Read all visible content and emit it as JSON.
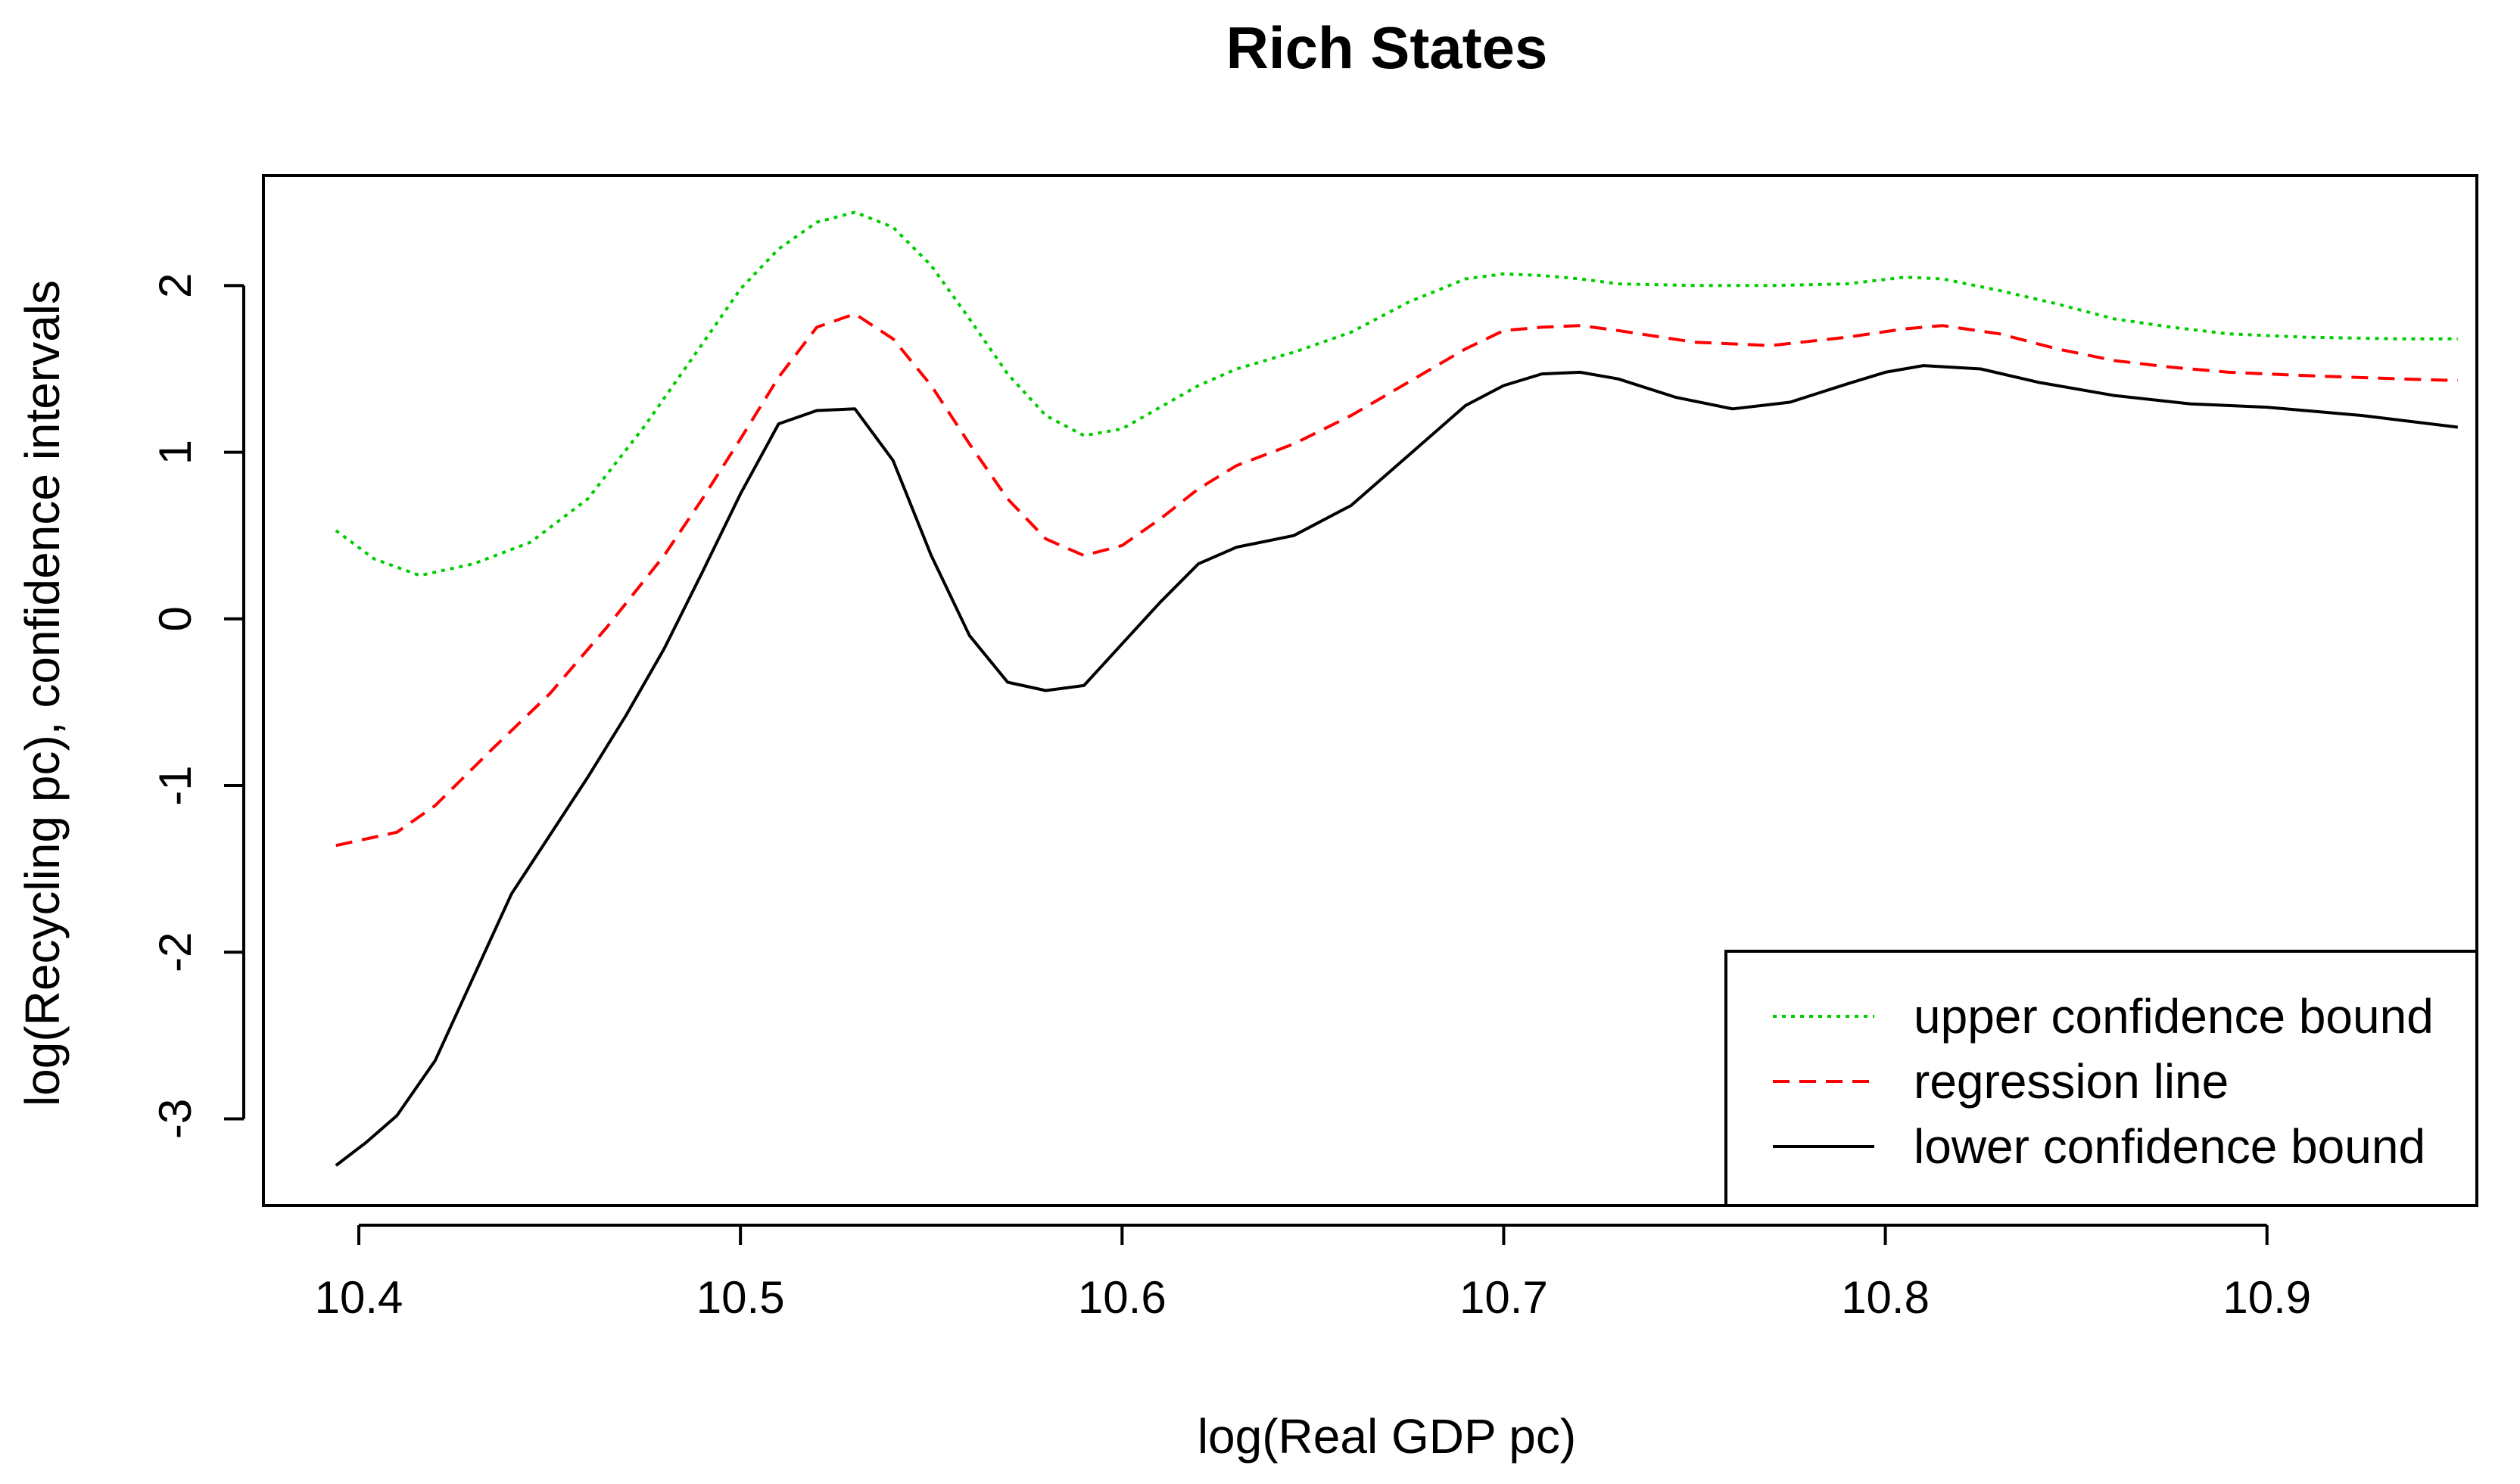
{
  "chart_data": {
    "type": "line",
    "title": "Rich States",
    "xlabel": "log(Real GDP pc)",
    "ylabel": "log(Recycling pc), confidence intervals",
    "xlim": [
      10.375,
      10.955
    ],
    "ylim": [
      -3.52,
      2.66
    ],
    "xticks": [
      10.4,
      10.5,
      10.6,
      10.7,
      10.8,
      10.9
    ],
    "xtick_labels": [
      "10.4",
      "10.5",
      "10.6",
      "10.7",
      "10.8",
      "10.9"
    ],
    "yticks": [
      -3,
      -2,
      -1,
      0,
      1,
      2
    ],
    "ytick_labels": [
      "-3",
      "-2",
      "-1",
      "0",
      "1",
      "2"
    ],
    "legend_position": "bottom-right",
    "grid": false,
    "series": [
      {
        "name": "upper confidence bound",
        "color": "#00cc00",
        "style": "dotted",
        "x": [
          10.394,
          10.404,
          10.416,
          10.43,
          10.445,
          10.46,
          10.475,
          10.49,
          10.5,
          10.51,
          10.52,
          10.53,
          10.54,
          10.55,
          10.56,
          10.57,
          10.58,
          10.59,
          10.6,
          10.61,
          10.62,
          10.63,
          10.645,
          10.66,
          10.675,
          10.69,
          10.7,
          10.71,
          10.72,
          10.73,
          10.75,
          10.77,
          10.79,
          10.805,
          10.815,
          10.83,
          10.845,
          10.86,
          10.875,
          10.89,
          10.91,
          10.935,
          10.95
        ],
        "y": [
          0.53,
          0.36,
          0.26,
          0.33,
          0.46,
          0.72,
          1.16,
          1.65,
          1.98,
          2.22,
          2.38,
          2.44,
          2.35,
          2.12,
          1.8,
          1.47,
          1.22,
          1.1,
          1.14,
          1.27,
          1.4,
          1.5,
          1.6,
          1.72,
          1.9,
          2.04,
          2.07,
          2.06,
          2.04,
          2.01,
          2.0,
          2.0,
          2.01,
          2.05,
          2.04,
          1.97,
          1.89,
          1.8,
          1.75,
          1.71,
          1.69,
          1.68,
          1.68
        ]
      },
      {
        "name": "regression line",
        "color": "#ff0000",
        "style": "dashed",
        "x": [
          10.394,
          10.41,
          10.42,
          10.435,
          10.45,
          10.465,
          10.48,
          10.49,
          10.5,
          10.51,
          10.52,
          10.53,
          10.54,
          10.55,
          10.56,
          10.57,
          10.58,
          10.59,
          10.6,
          10.61,
          10.62,
          10.63,
          10.645,
          10.66,
          10.675,
          10.69,
          10.7,
          10.71,
          10.72,
          10.73,
          10.75,
          10.77,
          10.79,
          10.805,
          10.815,
          10.83,
          10.845,
          10.86,
          10.875,
          10.89,
          10.91,
          10.935,
          10.95
        ],
        "y": [
          -1.36,
          -1.28,
          -1.12,
          -0.78,
          -0.45,
          -0.05,
          0.38,
          0.72,
          1.08,
          1.45,
          1.75,
          1.83,
          1.68,
          1.4,
          1.05,
          0.72,
          0.48,
          0.38,
          0.44,
          0.6,
          0.78,
          0.92,
          1.05,
          1.22,
          1.42,
          1.62,
          1.73,
          1.75,
          1.76,
          1.73,
          1.66,
          1.64,
          1.69,
          1.74,
          1.76,
          1.71,
          1.62,
          1.55,
          1.51,
          1.48,
          1.46,
          1.44,
          1.43
        ]
      },
      {
        "name": "lower confidence bound",
        "color": "#000000",
        "style": "solid",
        "x": [
          10.394,
          10.402,
          10.41,
          10.42,
          10.43,
          10.44,
          10.45,
          10.46,
          10.47,
          10.48,
          10.49,
          10.5,
          10.51,
          10.52,
          10.53,
          10.54,
          10.55,
          10.56,
          10.57,
          10.58,
          10.59,
          10.6,
          10.61,
          10.62,
          10.63,
          10.645,
          10.66,
          10.675,
          10.69,
          10.7,
          10.71,
          10.72,
          10.73,
          10.745,
          10.76,
          10.775,
          10.79,
          10.8,
          10.81,
          10.825,
          10.84,
          10.86,
          10.88,
          10.9,
          10.925,
          10.95
        ],
        "y": [
          -3.28,
          -3.14,
          -2.98,
          -2.65,
          -2.15,
          -1.65,
          -1.3,
          -0.95,
          -0.58,
          -0.18,
          0.28,
          0.75,
          1.17,
          1.25,
          1.26,
          0.95,
          0.38,
          -0.1,
          -0.38,
          -0.43,
          -0.4,
          -0.15,
          0.1,
          0.33,
          0.43,
          0.5,
          0.68,
          0.98,
          1.28,
          1.4,
          1.47,
          1.48,
          1.44,
          1.33,
          1.26,
          1.3,
          1.41,
          1.48,
          1.52,
          1.5,
          1.42,
          1.34,
          1.29,
          1.27,
          1.22,
          1.15
        ]
      }
    ]
  }
}
